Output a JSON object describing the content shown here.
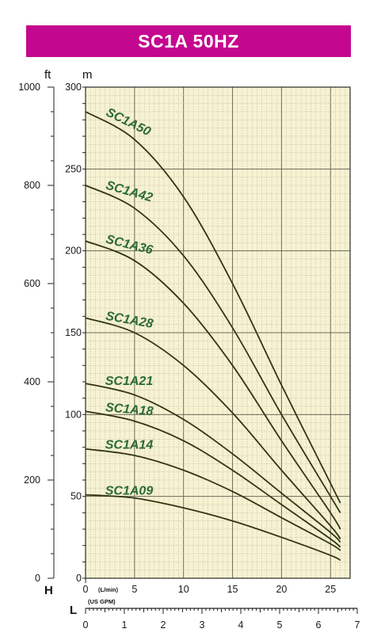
{
  "chart_data": {
    "type": "line",
    "title": "SC1A 50HZ",
    "y_unit_left": "ft",
    "y_unit_right": "m",
    "x_axis_letter_h": "H",
    "x_axis_letter_l": "L",
    "x_unit_lmin": "(L/min)",
    "x_unit_usgpm": "(US GPM)",
    "ylim_m": [
      0,
      300
    ],
    "ylim_ft": [
      0,
      1000
    ],
    "xlim_lmin": [
      0,
      27
    ],
    "xlim_usgpm": [
      0,
      7
    ],
    "y_ticks_m": [
      "0",
      "50",
      "100",
      "150",
      "200",
      "250",
      "300"
    ],
    "y_ticks_ft": [
      "0",
      "200",
      "400",
      "600",
      "800",
      "1000"
    ],
    "x_ticks_lmin": [
      "0",
      "5",
      "10",
      "15",
      "20",
      "25"
    ],
    "x_ticks_usgpm": [
      "0",
      "1",
      "2",
      "3",
      "4",
      "5",
      "6",
      "7"
    ],
    "grid": true,
    "series": [
      {
        "name": "SC1A50",
        "x": [
          0,
          5,
          10,
          15,
          20,
          25,
          26
        ],
        "y": [
          285,
          268,
          233,
          180,
          118,
          58,
          46
        ]
      },
      {
        "name": "SC1A42",
        "x": [
          0,
          5,
          10,
          15,
          20,
          25,
          26
        ],
        "y": [
          240,
          226,
          197,
          153,
          100,
          50,
          40
        ]
      },
      {
        "name": "SC1A36",
        "x": [
          0,
          5,
          10,
          15,
          20,
          25,
          26
        ],
        "y": [
          206,
          194,
          168,
          130,
          84,
          40,
          30
        ]
      },
      {
        "name": "SC1A28",
        "x": [
          0,
          5,
          10,
          15,
          20,
          25,
          26
        ],
        "y": [
          159,
          150,
          130,
          101,
          66,
          32,
          24
        ]
      },
      {
        "name": "SC1A21",
        "x": [
          0,
          5,
          10,
          15,
          20,
          25,
          26
        ],
        "y": [
          119,
          112,
          97,
          76,
          52,
          28,
          22
        ]
      },
      {
        "name": "SC1A18",
        "x": [
          0,
          5,
          10,
          15,
          20,
          25,
          26
        ],
        "y": [
          102,
          96,
          84,
          66,
          45,
          24,
          19
        ]
      },
      {
        "name": "SC1A14",
        "x": [
          0,
          5,
          10,
          15,
          20,
          25,
          26
        ],
        "y": [
          79,
          75,
          66,
          53,
          37,
          21,
          17
        ]
      },
      {
        "name": "SC1A09",
        "x": [
          0,
          5,
          10,
          15,
          20,
          25,
          26
        ],
        "y": [
          51,
          49,
          43,
          35,
          25,
          14,
          11
        ]
      }
    ],
    "curve_label_x": [
      2,
      2,
      2,
      2,
      2,
      2,
      2,
      2
    ],
    "curve_label_y": [
      283,
      238,
      205,
      158,
      118,
      102,
      79,
      51
    ]
  },
  "colors": {
    "title_bg": "#c4078f",
    "title_text": "#ffffff",
    "plot_bg": "#f6f2d2",
    "grid_fine": "#b9b28f",
    "grid_major": "#6d6a5a",
    "curve": "#323513",
    "label": "#2c6a33"
  }
}
